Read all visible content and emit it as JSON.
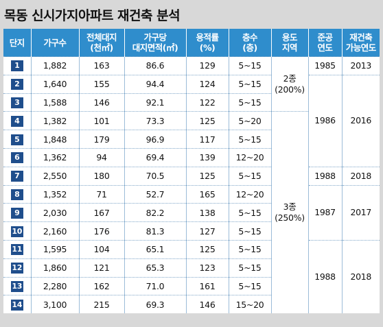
{
  "title": "목동 신시가지아파트 재건축 분석",
  "headers": [
    [
      "단지"
    ],
    [
      "가구수"
    ],
    [
      "전체대지",
      "(천㎡)"
    ],
    [
      "가구당",
      "대지면적(㎡)"
    ],
    [
      "용적률",
      "(%)"
    ],
    [
      "층수",
      "(층)"
    ],
    [
      "용도",
      "지역"
    ],
    [
      "준공",
      "연도"
    ],
    [
      "재건축",
      "가능연도"
    ]
  ],
  "rows": [
    {
      "complex": "1",
      "households": "1,882",
      "land": "163",
      "per_household": "86.6",
      "far": "129",
      "floors": "5~15"
    },
    {
      "complex": "2",
      "households": "1,640",
      "land": "155",
      "per_household": "94.4",
      "far": "124",
      "floors": "5~15"
    },
    {
      "complex": "3",
      "households": "1,588",
      "land": "146",
      "per_household": "92.1",
      "far": "122",
      "floors": "5~15"
    },
    {
      "complex": "4",
      "households": "1,382",
      "land": "101",
      "per_household": "73.3",
      "far": "125",
      "floors": "5~20"
    },
    {
      "complex": "5",
      "households": "1,848",
      "land": "179",
      "per_household": "96.9",
      "far": "117",
      "floors": "5~15"
    },
    {
      "complex": "6",
      "households": "1,362",
      "land": "94",
      "per_household": "69.4",
      "far": "139",
      "floors": "12~20"
    },
    {
      "complex": "7",
      "households": "2,550",
      "land": "180",
      "per_household": "70.5",
      "far": "125",
      "floors": "5~15"
    },
    {
      "complex": "8",
      "households": "1,352",
      "land": "71",
      "per_household": "52.7",
      "far": "165",
      "floors": "12~20"
    },
    {
      "complex": "9",
      "households": "2,030",
      "land": "167",
      "per_household": "82.2",
      "far": "138",
      "floors": "5~15"
    },
    {
      "complex": "10",
      "households": "2,160",
      "land": "176",
      "per_household": "81.3",
      "far": "127",
      "floors": "5~15"
    },
    {
      "complex": "11",
      "households": "1,595",
      "land": "104",
      "per_household": "65.1",
      "far": "125",
      "floors": "5~15"
    },
    {
      "complex": "12",
      "households": "1,860",
      "land": "121",
      "per_household": "65.3",
      "far": "123",
      "floors": "5~15"
    },
    {
      "complex": "13",
      "households": "2,280",
      "land": "162",
      "per_household": "71.0",
      "far": "161",
      "floors": "5~15"
    },
    {
      "complex": "14",
      "households": "3,100",
      "land": "215",
      "per_household": "69.3",
      "far": "146",
      "floors": "15~20"
    }
  ],
  "zoning_groups": [
    {
      "start": 0,
      "span": 3,
      "line1": "2종",
      "line2": "(200%)"
    },
    {
      "start": 3,
      "span": 11,
      "line1": "3종",
      "line2": "(250%)"
    }
  ],
  "completion_groups": [
    {
      "start": 0,
      "span": 1,
      "year": "1985",
      "rebuild": "2013"
    },
    {
      "start": 1,
      "span": 5,
      "year": "1986",
      "rebuild": "2016"
    },
    {
      "start": 6,
      "span": 1,
      "year": "1988",
      "rebuild": "2018"
    },
    {
      "start": 7,
      "span": 3,
      "year": "1987",
      "rebuild": "2017"
    },
    {
      "start": 10,
      "span": 4,
      "year": "1988",
      "rebuild": "2018"
    }
  ],
  "colors": {
    "header_bg": "#2f8dcc",
    "badge_bg": "#1f4e8c"
  }
}
